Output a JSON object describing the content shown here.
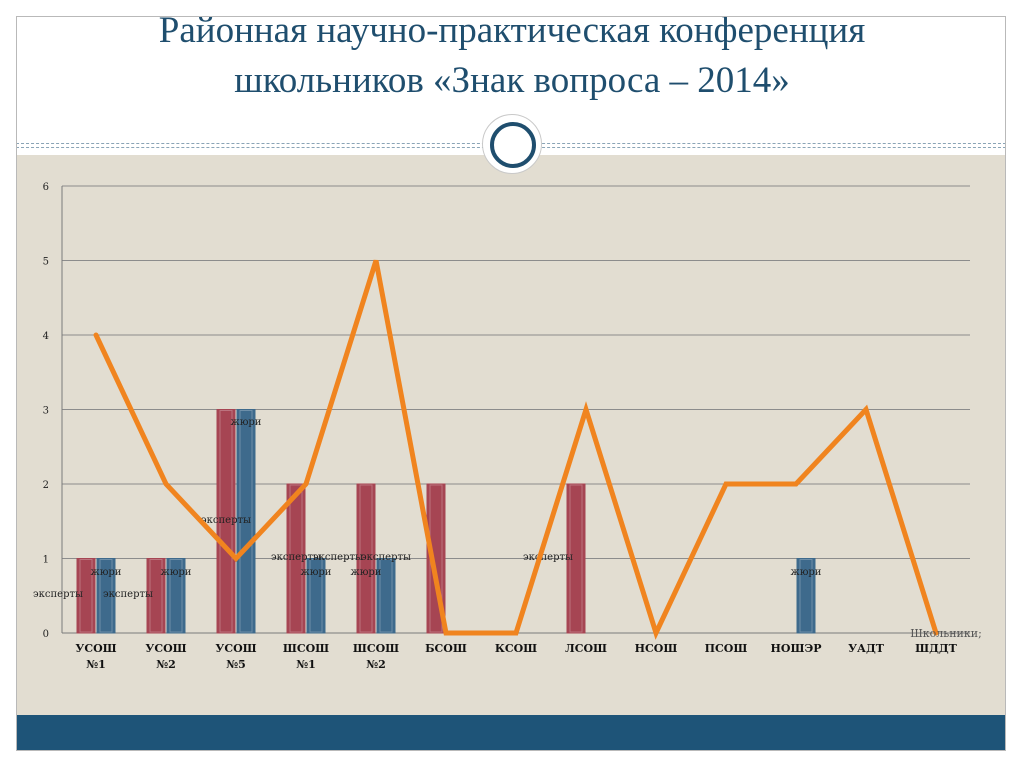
{
  "slide": {
    "title_line1": "Районная научно-практическая конференция",
    "title_line2": "школьников  «Знак вопроса – 2014»"
  },
  "colors": {
    "title": "#1f4e6e",
    "panel_background": "#e2ddd1",
    "footer_band": "#1e5478",
    "bar_experts": "#a64553",
    "bar_jury": "#3e6a8c",
    "line_students": "#f0841f"
  },
  "chart_data": {
    "type": "bar",
    "combo_line": true,
    "title": "",
    "xlabel": "",
    "ylabel": "",
    "ylim": [
      0,
      6
    ],
    "yticks": [
      0,
      1,
      2,
      3,
      4,
      5,
      6
    ],
    "grid": true,
    "categories": [
      [
        "УСОШ",
        "№1"
      ],
      [
        "УСОШ",
        "№2"
      ],
      [
        "УСОШ",
        "№5"
      ],
      [
        "ШСОШ",
        "№1"
      ],
      [
        "ШСОШ",
        "№2"
      ],
      [
        "БСОШ"
      ],
      [
        "КСОШ"
      ],
      [
        "ЛСОШ"
      ],
      [
        "НСОШ"
      ],
      [
        "ПСОШ"
      ],
      [
        "НОШЭР"
      ],
      [
        "УАДТ"
      ],
      [
        "ШДДТ"
      ]
    ],
    "series": [
      {
        "name": "эксперты",
        "kind": "bar",
        "values": [
          1,
          1,
          3,
          2,
          2,
          2,
          0,
          2,
          0,
          0,
          0,
          0,
          0
        ],
        "labels": [
          "эксперты",
          "эксперты",
          "эксперты",
          "эксперты",
          "эксперты",
          "эксперты",
          "",
          "эксперты",
          "",
          "",
          "",
          "",
          ""
        ]
      },
      {
        "name": "жюри",
        "kind": "bar",
        "values": [
          1,
          1,
          3,
          1,
          1,
          0,
          0,
          0,
          0,
          0,
          1,
          0,
          0
        ],
        "labels": [
          "жюри",
          "жюри",
          "жюри",
          "жюри",
          "жюри",
          "",
          "",
          "",
          "",
          "",
          "жюри",
          "",
          ""
        ]
      },
      {
        "name": "Школьники",
        "kind": "line",
        "values": [
          4,
          2,
          1,
          2,
          5,
          0,
          0,
          3,
          0,
          2,
          2,
          3,
          0
        ]
      }
    ],
    "annotation": "Школьники;"
  }
}
